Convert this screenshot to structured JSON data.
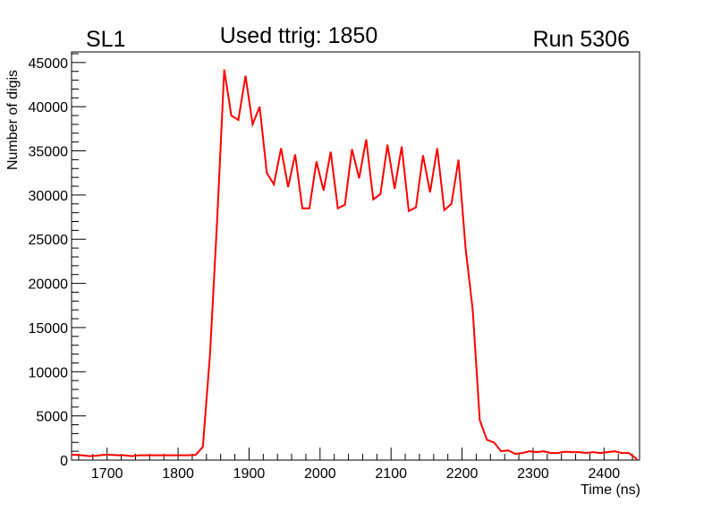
{
  "header": {
    "left": "SL1",
    "center": "Used ttrig: 1850",
    "right": "Run 5306"
  },
  "chart_data": {
    "type": "line",
    "title": "Used ttrig: 1850",
    "xlabel": "Time (ns)",
    "ylabel": "Number of digis",
    "xlim": [
      1650,
      2450
    ],
    "ylim": [
      0,
      46200
    ],
    "grid": false,
    "line_color": "#ff0000",
    "xticks": [
      1700,
      1800,
      1900,
      2000,
      2100,
      2200,
      2300,
      2400
    ],
    "yticks": [
      0,
      5000,
      10000,
      15000,
      20000,
      25000,
      30000,
      35000,
      40000,
      45000
    ],
    "x": [
      1655,
      1665,
      1675,
      1685,
      1695,
      1705,
      1715,
      1725,
      1735,
      1745,
      1755,
      1765,
      1775,
      1785,
      1795,
      1805,
      1815,
      1825,
      1835,
      1845,
      1855,
      1865,
      1875,
      1885,
      1895,
      1905,
      1915,
      1925,
      1935,
      1945,
      1955,
      1965,
      1975,
      1985,
      1995,
      2005,
      2015,
      2025,
      2035,
      2045,
      2055,
      2065,
      2075,
      2085,
      2095,
      2105,
      2115,
      2125,
      2135,
      2145,
      2155,
      2165,
      2175,
      2185,
      2195,
      2205,
      2215,
      2225,
      2235,
      2245,
      2255,
      2265,
      2275,
      2285,
      2295,
      2305,
      2315,
      2325,
      2335,
      2345,
      2355,
      2365,
      2375,
      2385,
      2395,
      2405,
      2415,
      2425,
      2435,
      2445
    ],
    "y": [
      600,
      550,
      450,
      500,
      600,
      600,
      550,
      550,
      450,
      550,
      550,
      550,
      550,
      550,
      550,
      550,
      550,
      600,
      1500,
      12000,
      27000,
      44200,
      39000,
      38500,
      43500,
      38000,
      40000,
      32500,
      31200,
      35300,
      30900,
      34600,
      28500,
      28500,
      33800,
      30500,
      34900,
      28500,
      28900,
      35200,
      31900,
      36300,
      29500,
      30100,
      35700,
      30700,
      35500,
      28200,
      28600,
      34500,
      30300,
      35300,
      28300,
      29000,
      34000,
      24000,
      17000,
      4500,
      2300,
      2000,
      1000,
      1100,
      700,
      800,
      1000,
      900,
      1000,
      800,
      800,
      950,
      900,
      900,
      800,
      900,
      800,
      900,
      1000,
      800,
      800,
      200
    ]
  }
}
